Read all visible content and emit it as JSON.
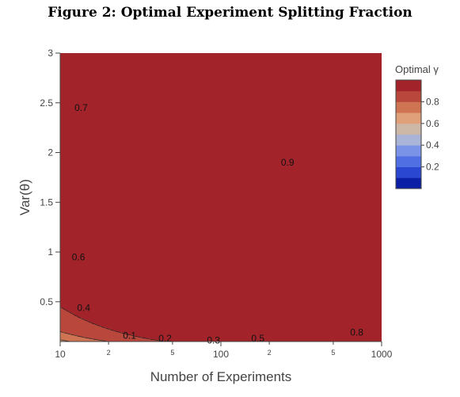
{
  "figure": {
    "title": "Figure 2: Optimal Experiment Splitting Fraction"
  },
  "chart_data": {
    "type": "contour",
    "title": "",
    "xlabel": "Number of Experiments",
    "ylabel": "Var(θ)",
    "x_scale": "log",
    "xlim": [
      10,
      1000
    ],
    "ylim": [
      0.1,
      3
    ],
    "x_ticks": [
      {
        "value": 10,
        "label": "10",
        "major": true
      },
      {
        "value": 20,
        "label": "2",
        "major": false
      },
      {
        "value": 50,
        "label": "5",
        "major": false
      },
      {
        "value": 100,
        "label": "100",
        "major": true
      },
      {
        "value": 200,
        "label": "2",
        "major": false
      },
      {
        "value": 500,
        "label": "5",
        "major": false
      },
      {
        "value": 1000,
        "label": "1000",
        "major": true
      }
    ],
    "y_ticks": [
      {
        "value": 0.5,
        "label": "0.5"
      },
      {
        "value": 1,
        "label": "1"
      },
      {
        "value": 1.5,
        "label": "1.5"
      },
      {
        "value": 2,
        "label": "2"
      },
      {
        "value": 2.5,
        "label": "2.5"
      },
      {
        "value": 3,
        "label": "3"
      }
    ],
    "contour_levels": [
      0.1,
      0.2,
      0.3,
      0.4,
      0.5,
      0.6,
      0.7,
      0.8,
      0.9
    ],
    "contour_labels": [
      {
        "level": 0.1,
        "text": "0.1",
        "at": [
          27,
          0.16
        ]
      },
      {
        "level": 0.2,
        "text": "0.2",
        "at": [
          45,
          0.13
        ]
      },
      {
        "level": 0.3,
        "text": "0.3",
        "at": [
          90,
          0.11
        ]
      },
      {
        "level": 0.4,
        "text": "0.4",
        "at": [
          14,
          0.44
        ]
      },
      {
        "level": 0.5,
        "text": "0.5",
        "at": [
          170,
          0.13
        ]
      },
      {
        "level": 0.6,
        "text": "0.6",
        "at": [
          13,
          0.95
        ]
      },
      {
        "level": 0.7,
        "text": "0.7",
        "at": [
          13.5,
          2.45
        ]
      },
      {
        "level": 0.8,
        "text": "0.8",
        "at": [
          700,
          0.19
        ]
      },
      {
        "level": 0.9,
        "text": "0.9",
        "at": [
          260,
          1.9
        ]
      }
    ],
    "colorbar": {
      "title": "Optimal γ",
      "range": [
        0,
        1
      ],
      "tick_values": [
        0.2,
        0.4,
        0.6,
        0.8
      ],
      "tick_labels": [
        "0.2",
        "0.4",
        "0.6",
        "0.8"
      ],
      "colors": [
        "#0b1fa6",
        "#2a47d1",
        "#4f6fe3",
        "#7a93e6",
        "#aab4d8",
        "#cdb7a6",
        "#dfa07a",
        "#cf7453",
        "#b9473c",
        "#a2242a"
      ]
    }
  }
}
